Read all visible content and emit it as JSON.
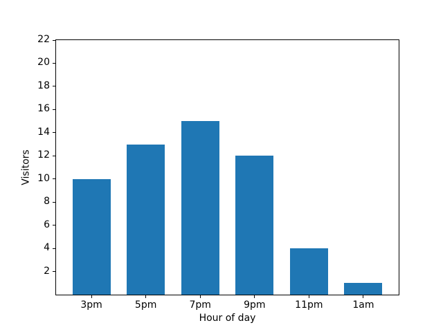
{
  "chart_data": {
    "type": "bar",
    "categories": [
      "3pm",
      "5pm",
      "7pm",
      "9pm",
      "11pm",
      "1am"
    ],
    "values": [
      10,
      13,
      15,
      12,
      4,
      1
    ],
    "title": "",
    "xlabel": "Hour of day",
    "ylabel": "Visitors",
    "ylim": [
      0,
      22
    ],
    "yticks": [
      2,
      4,
      6,
      8,
      10,
      12,
      14,
      16,
      18,
      20,
      22
    ],
    "bar_color": "#1f77b4",
    "spine_color": "#000000",
    "background_color": "#ffffff",
    "grid": false,
    "legend_position": "none"
  }
}
